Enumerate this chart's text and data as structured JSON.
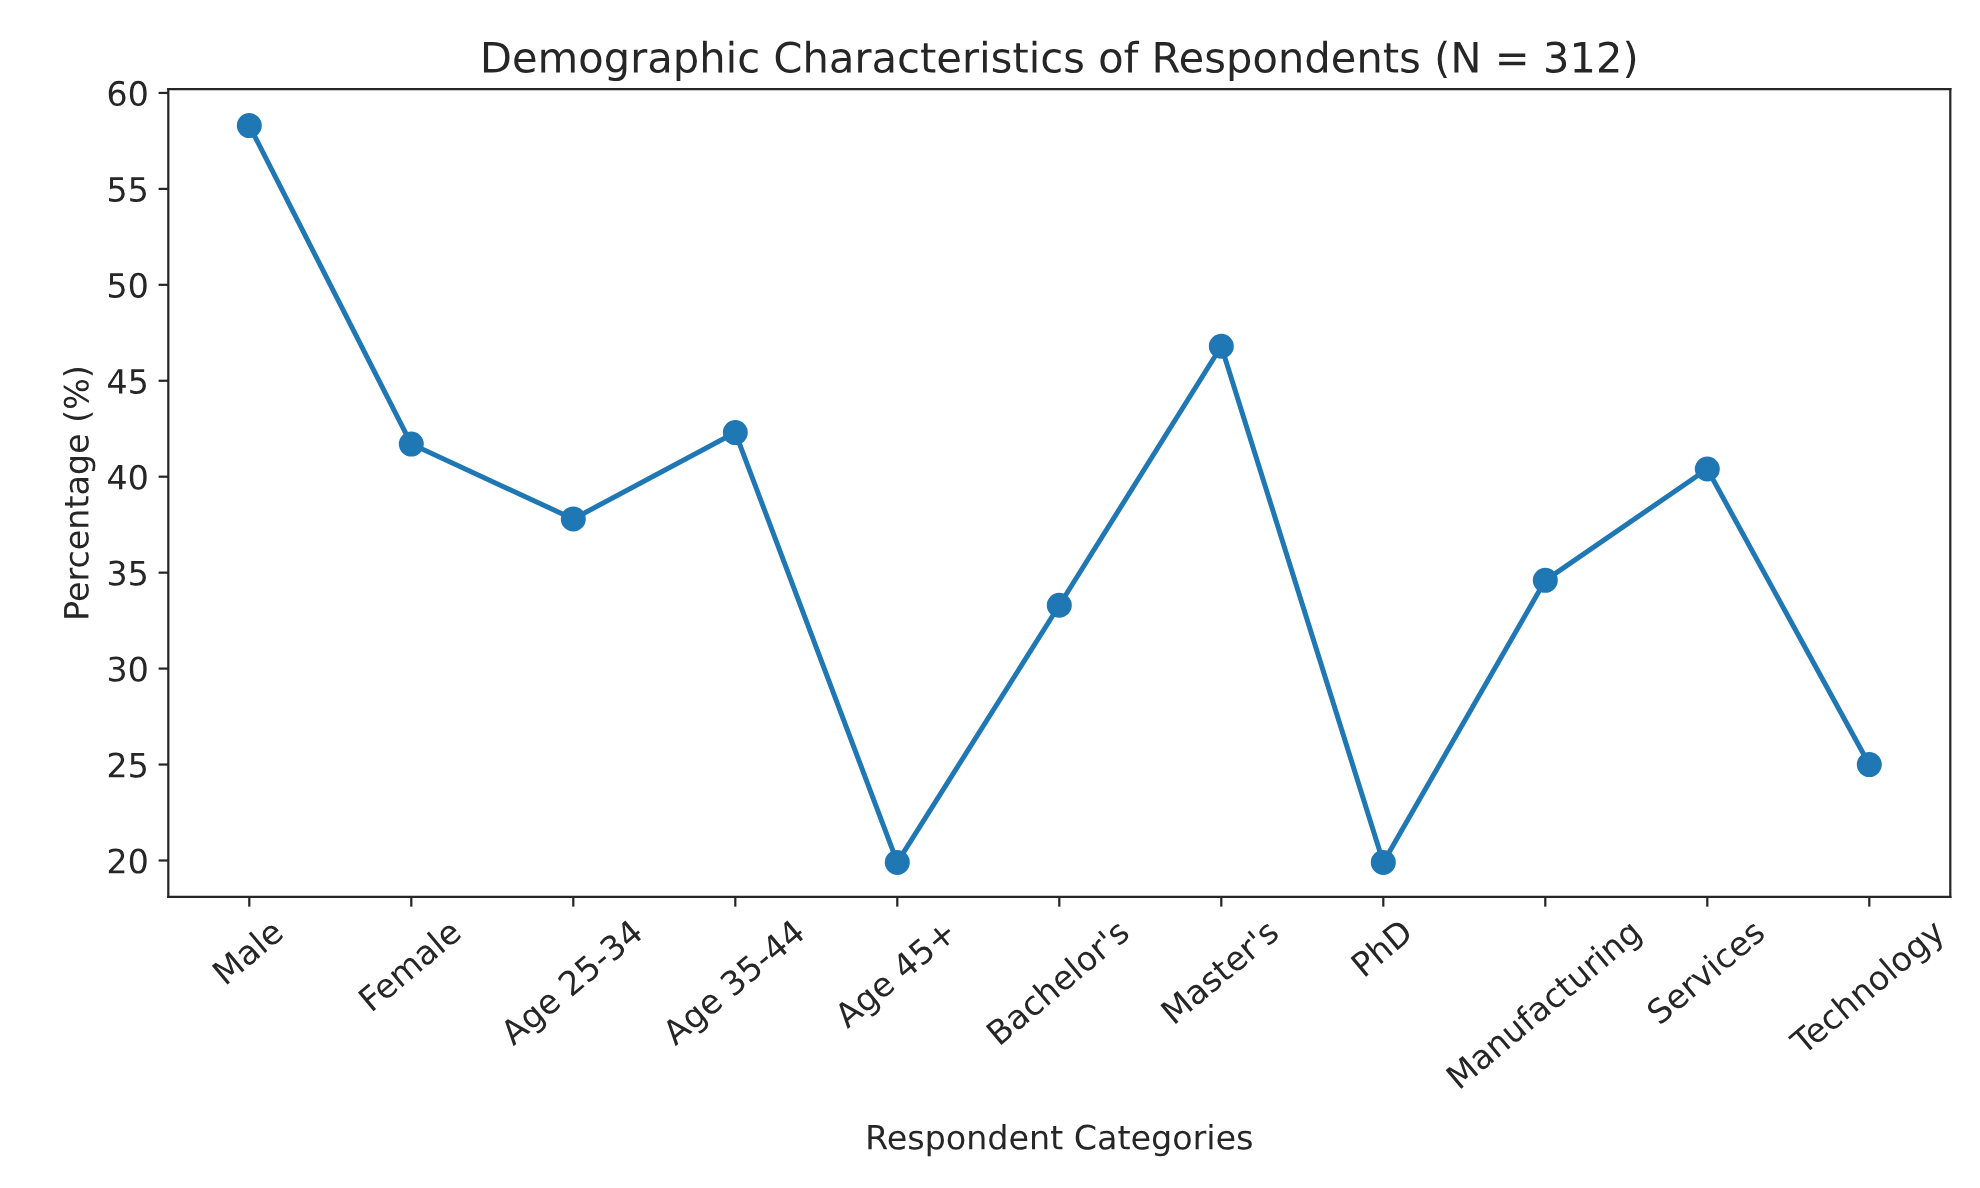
{
  "chart_data": {
    "type": "line",
    "title": "Demographic Characteristics of Respondents (N = 312)",
    "xlabel": "Respondent Categories",
    "ylabel": "Percentage (%)",
    "categories": [
      "Male",
      "Female",
      "Age 25-34",
      "Age 35-44",
      "Age 45+",
      "Bachelor's",
      "Master's",
      "PhD",
      "Manufacturing",
      "Services",
      "Technology"
    ],
    "series": [
      {
        "color": "#1f77b4",
        "values": [
          58.3,
          41.7,
          37.8,
          42.3,
          19.9,
          33.3,
          46.8,
          19.9,
          34.6,
          40.4,
          25.0
        ]
      }
    ],
    "ylim": [
      18.1,
      60.2
    ],
    "yticks": [
      20,
      25,
      30,
      35,
      40,
      45,
      50,
      55,
      60
    ],
    "marker": "circle",
    "line_style": "solid",
    "grid": false,
    "legend": false
  }
}
